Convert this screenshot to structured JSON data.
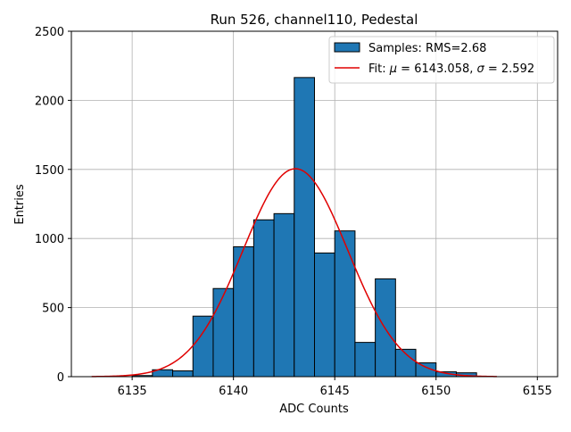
{
  "chart_data": {
    "type": "bar",
    "title": "Run 526, channel110, Pedestal",
    "xlabel": "ADC Counts",
    "ylabel": "Entries",
    "xlim": [
      6132.0,
      6156.0
    ],
    "ylim": [
      0,
      2500
    ],
    "grid": true,
    "x_ticks": [
      6135,
      6140,
      6145,
      6150,
      6155
    ],
    "y_ticks": [
      0,
      500,
      1000,
      1500,
      2000,
      2500
    ],
    "bar_color": "#1f77b4",
    "fit_color": "#e00000",
    "histogram": {
      "name": "Samples: RMS=2.68",
      "bin_edges": [
        6135,
        6136,
        6137,
        6138,
        6139,
        6140,
        6141,
        6142,
        6143,
        6144,
        6145,
        6146,
        6147,
        6148,
        6149,
        6150,
        6151,
        6152
      ],
      "counts": [
        8,
        50,
        42,
        438,
        638,
        940,
        1135,
        1180,
        2165,
        895,
        1055,
        248,
        708,
        198,
        100,
        35,
        28
      ]
    },
    "fit": {
      "name": "Fit: μ = 6143.058, σ = 2.592",
      "label_prefix": "Fit: ",
      "mu_symbol": "μ",
      "mu_text": " = 6143.058, ",
      "sigma_symbol": "σ",
      "sigma_text": " = 2.592",
      "mu": 6143.058,
      "sigma": 2.592,
      "amplitude": 1505,
      "x_range": [
        6133,
        6153
      ]
    },
    "legend_position": "top-right"
  }
}
